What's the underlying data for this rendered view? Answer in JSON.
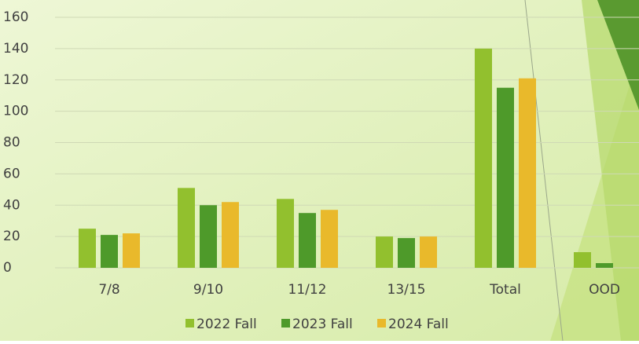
{
  "chart_data": {
    "type": "bar",
    "categories": [
      "7/8",
      "9/10",
      "11/12",
      "13/15",
      "Total",
      "OOD"
    ],
    "series": [
      {
        "name": "2022 Fall",
        "color": "#92c02e",
        "values": [
          25,
          51,
          44,
          20,
          140,
          10
        ]
      },
      {
        "name": "2023 Fall",
        "color": "#4e9a2a",
        "values": [
          21,
          40,
          35,
          19,
          115,
          3
        ]
      },
      {
        "name": "2024 Fall",
        "color": "#e9b92b",
        "values": [
          22,
          42,
          37,
          20,
          121,
          null
        ]
      }
    ],
    "ylim": [
      0,
      160
    ],
    "yticks": [
      0,
      20,
      40,
      60,
      80,
      100,
      120,
      140,
      160
    ],
    "grid": true,
    "legend": "bottom"
  }
}
